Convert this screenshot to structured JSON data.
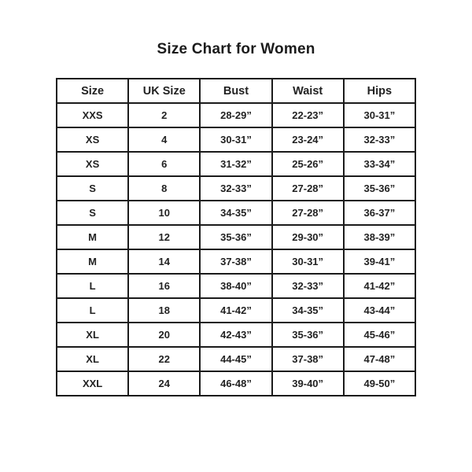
{
  "page": {
    "title": "Size Chart for Women"
  },
  "colors": {
    "background": "#ffffff",
    "border": "#1b1b1b",
    "text": "#222222"
  },
  "table": {
    "columns": [
      "Size",
      "UK Size",
      "Bust",
      "Waist",
      "Hips"
    ],
    "rows": [
      [
        "XXS",
        "2",
        "28-29”",
        "22-23”",
        "30-31”"
      ],
      [
        "XS",
        "4",
        "30-31”",
        "23-24”",
        "32-33”"
      ],
      [
        "XS",
        "6",
        "31-32”",
        "25-26”",
        "33-34”"
      ],
      [
        "S",
        "8",
        "32-33”",
        "27-28”",
        "35-36”"
      ],
      [
        "S",
        "10",
        "34-35”",
        "27-28”",
        "36-37”"
      ],
      [
        "M",
        "12",
        "35-36”",
        "29-30”",
        "38-39”"
      ],
      [
        "M",
        "14",
        "37-38”",
        "30-31”",
        "39-41”"
      ],
      [
        "L",
        "16",
        "38-40”",
        "32-33”",
        "41-42”"
      ],
      [
        "L",
        "18",
        "41-42”",
        "34-35”",
        "43-44”"
      ],
      [
        "XL",
        "20",
        "42-43”",
        "35-36”",
        "45-46”"
      ],
      [
        "XL",
        "22",
        "44-45”",
        "37-38”",
        "47-48”"
      ],
      [
        "XXL",
        "24",
        "46-48”",
        "39-40”",
        "49-50”"
      ]
    ]
  }
}
